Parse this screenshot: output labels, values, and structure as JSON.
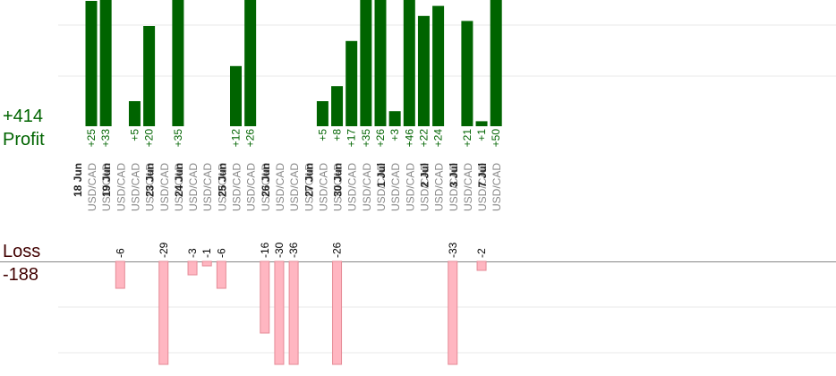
{
  "summary": {
    "profit_total": "+414",
    "profit_label": "Profit",
    "loss_label": "Loss",
    "loss_total": "-188"
  },
  "colors": {
    "profit_bar": "#006400",
    "loss_bar": "#ffb6c1",
    "loss_bar_edge": "#e58a96",
    "profit_text": "#006400",
    "loss_text": "#000000",
    "date_text": "#222222",
    "pair_text": "#888888",
    "grid": "#e8e8e8",
    "baseline": "#888888"
  },
  "chart_data": {
    "type": "bar",
    "title": "",
    "xlabel": "",
    "ylabel": "",
    "grid": true,
    "categories": [
      {
        "date": "18 Jun",
        "pairs": [
          "USD/CAD",
          "USD/CAD"
        ]
      },
      {
        "date": "19 Jun",
        "pairs": [
          "USD/CAD",
          "USD/CAD",
          "USD/CAD"
        ]
      },
      {
        "date": "23 Jun",
        "pairs": [
          "USD/CAD",
          "USD/CAD"
        ]
      },
      {
        "date": "24 Jun",
        "pairs": [
          "USD/CAD",
          "USD/CAD",
          "USD/CAD"
        ]
      },
      {
        "date": "25 Jun",
        "pairs": [
          "USD/CAD",
          "USD/CAD",
          "USD/CAD"
        ]
      },
      {
        "date": "26 Jun",
        "pairs": [
          "USD/CAD",
          "USD/CAD",
          "USD/CAD"
        ]
      },
      {
        "date": "27 Jun",
        "pairs": [
          "USD/CAD",
          "USD/CAD"
        ]
      },
      {
        "date": "30 Jun",
        "pairs": [
          "USD/CAD",
          "USD/CAD",
          "USD/CAD"
        ]
      },
      {
        "date": "1 Jul",
        "pairs": [
          "USD/CAD",
          "USD/CAD",
          "USD/CAD"
        ]
      },
      {
        "date": "2 Jul",
        "pairs": [
          "USD/CAD",
          "USD/CAD"
        ]
      },
      {
        "date": "3 Jul",
        "pairs": [
          "USD/CAD",
          "USD/CAD"
        ]
      },
      {
        "date": "7 Jul",
        "pairs": [
          "USD/CAD"
        ]
      }
    ],
    "series": [
      {
        "values": [
          {
            "value": 25,
            "label": "+25"
          },
          {
            "value": 33,
            "label": "+33"
          },
          null,
          {
            "value": 5,
            "label": "+5"
          },
          {
            "value": 20,
            "label": "+20"
          },
          null,
          {
            "value": 35,
            "label": "+35"
          },
          null,
          null,
          null,
          {
            "value": 12,
            "label": "+12"
          },
          {
            "value": 26,
            "label": "+26"
          },
          null,
          null,
          null,
          null,
          {
            "value": 5,
            "label": "+5"
          },
          {
            "value": 8,
            "label": "+8"
          },
          {
            "value": 17,
            "label": "+17"
          },
          {
            "value": 35,
            "label": "+35"
          },
          {
            "value": 26,
            "label": "+26"
          },
          {
            "value": 3,
            "label": "+3"
          },
          {
            "value": 46,
            "label": "+46"
          },
          {
            "value": 22,
            "label": "+22"
          },
          {
            "value": 24,
            "label": "+24"
          },
          null,
          {
            "value": 21,
            "label": "+21"
          },
          {
            "value": 1,
            "label": "+1"
          },
          {
            "value": 50,
            "label": "+50"
          }
        ]
      },
      {
        "values": [
          null,
          null,
          {
            "value": -6,
            "label": "-6"
          },
          null,
          null,
          {
            "value": -29,
            "label": "-29"
          },
          null,
          {
            "value": -3,
            "label": "-3"
          },
          {
            "value": -1,
            "label": "-1"
          },
          {
            "value": -6,
            "label": "-6"
          },
          null,
          null,
          {
            "value": -16,
            "label": "-16"
          },
          {
            "value": -30,
            "label": "-30"
          },
          {
            "value": -36,
            "label": "-36"
          },
          null,
          null,
          {
            "value": -26,
            "label": "-26"
          },
          null,
          null,
          null,
          null,
          null,
          null,
          null,
          {
            "value": -33,
            "label": "-33"
          },
          null,
          {
            "value": -2,
            "label": "-2"
          },
          null
        ]
      }
    ]
  }
}
